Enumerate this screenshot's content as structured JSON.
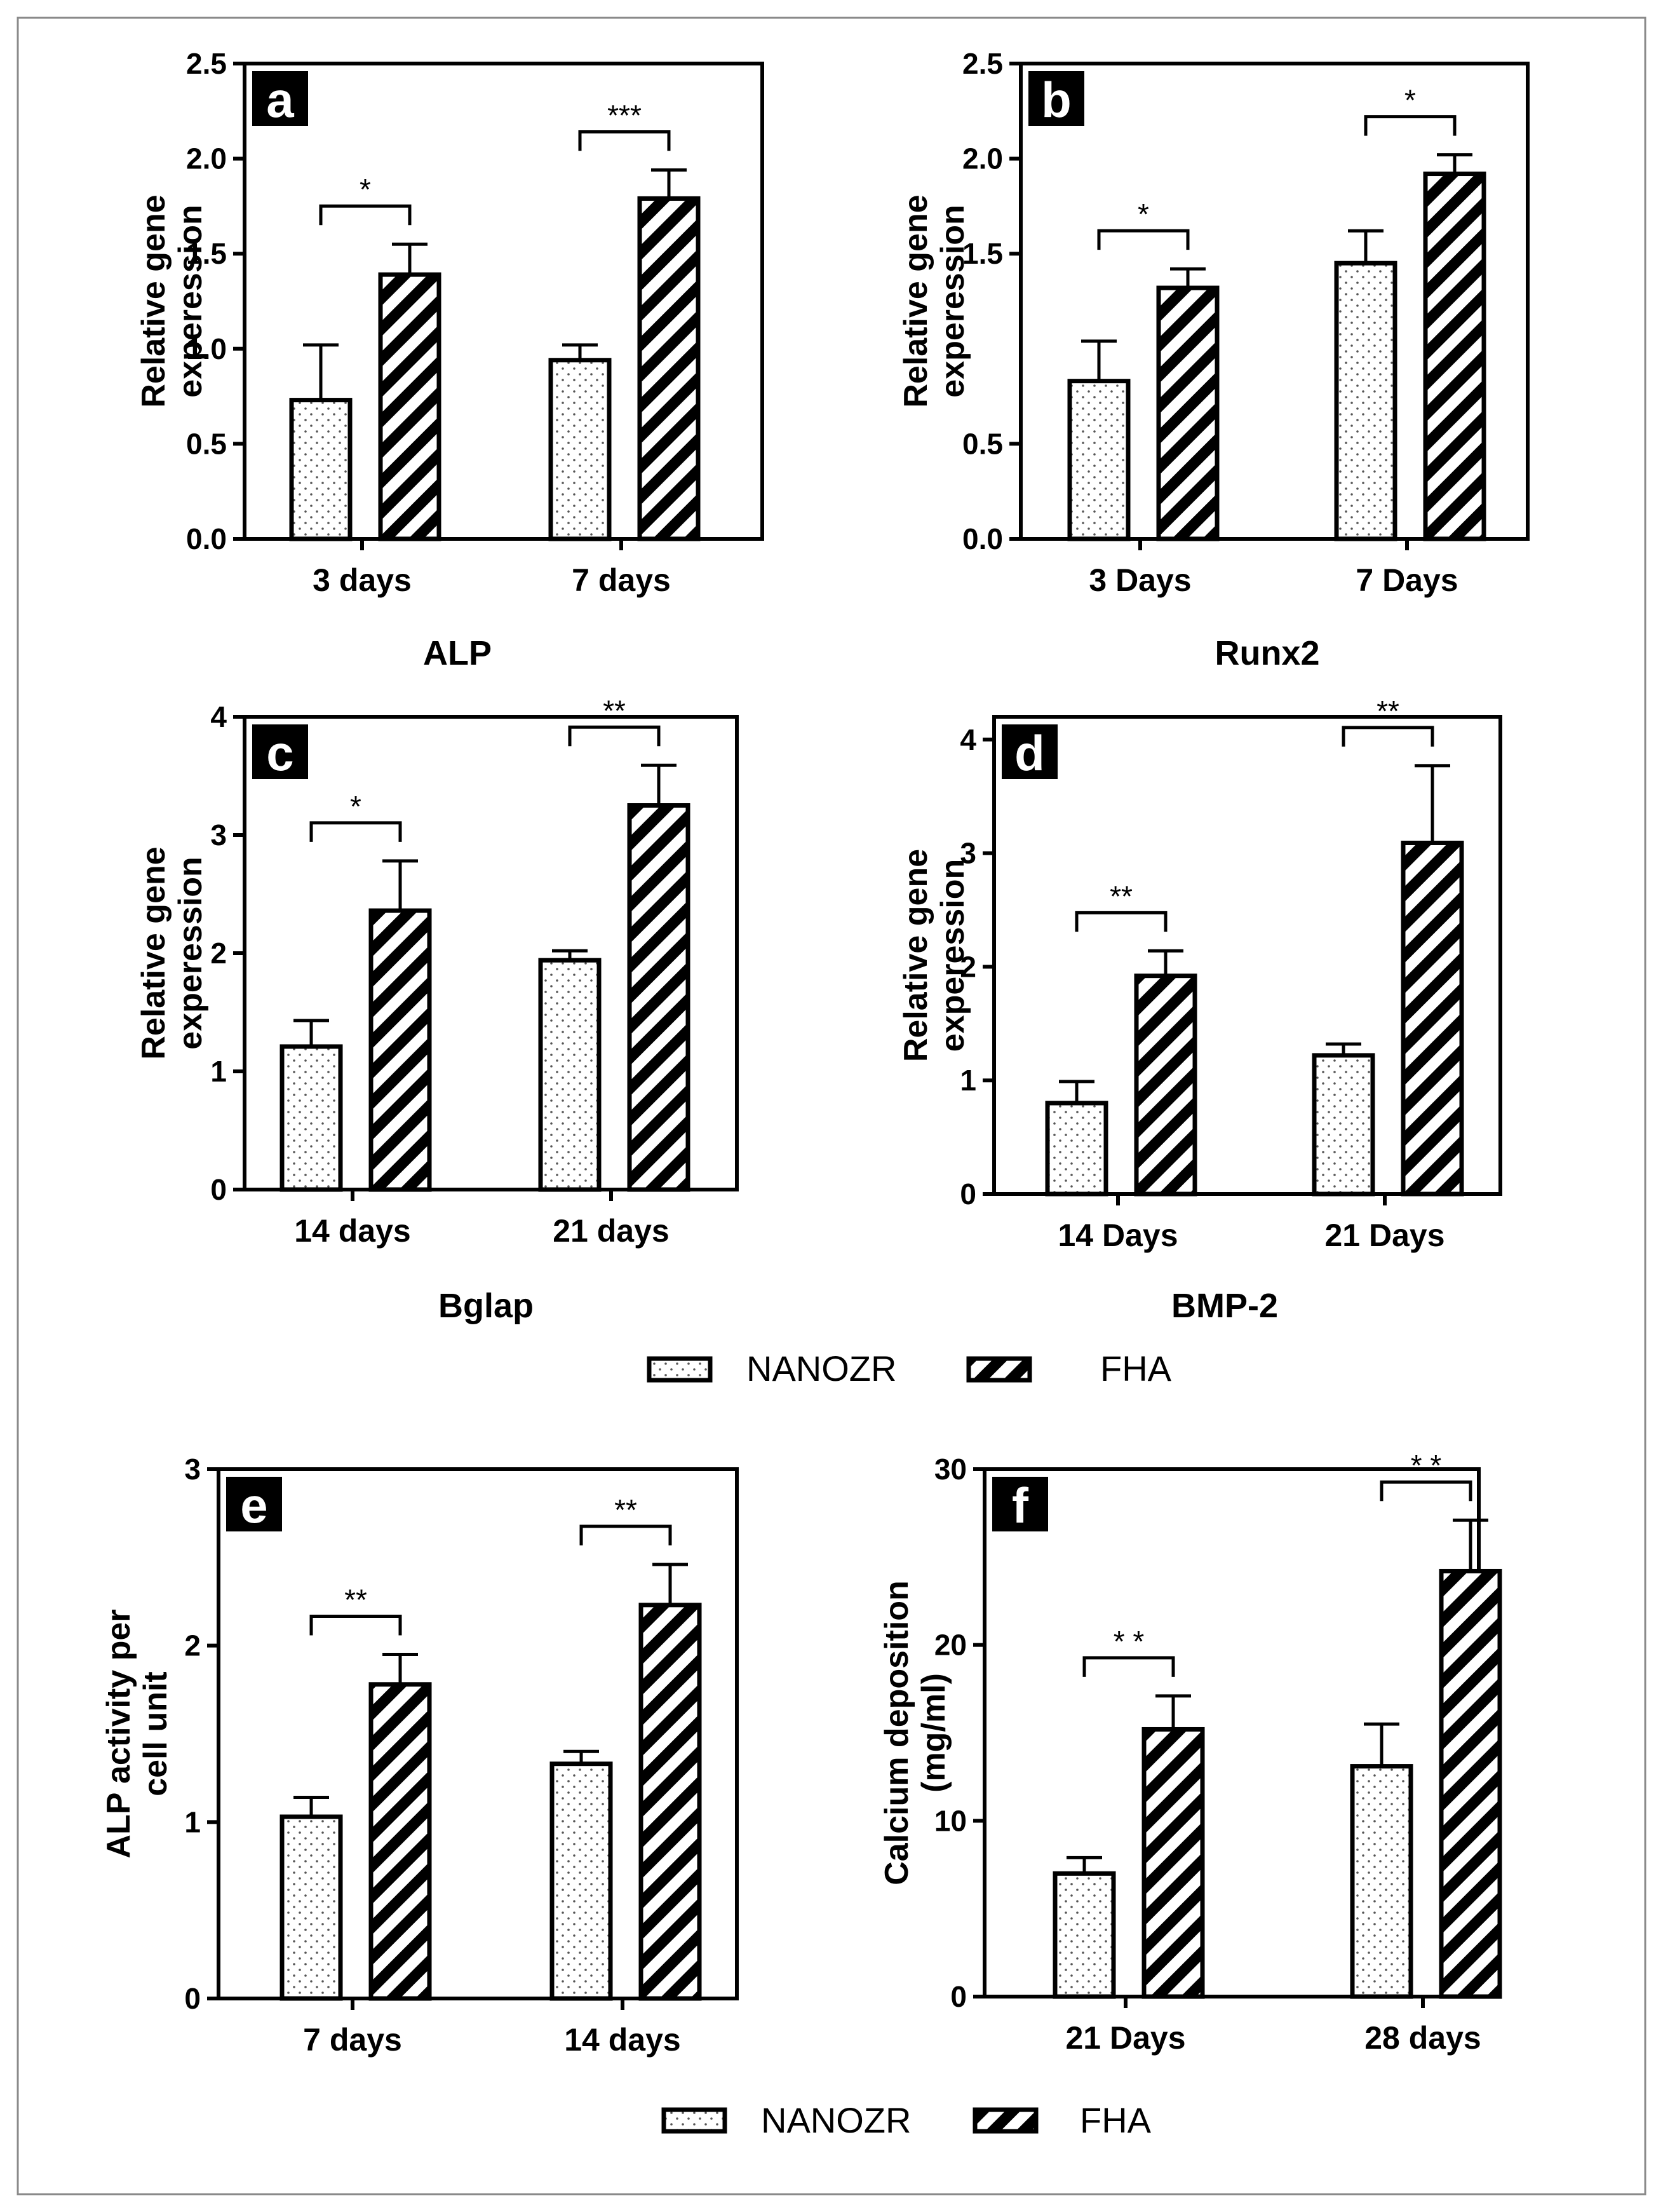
{
  "legend": {
    "series": [
      {
        "name": "NANOZR",
        "pattern": "dots"
      },
      {
        "name": "FHA",
        "pattern": "hatch"
      }
    ]
  },
  "chart_data": [
    {
      "panel": "a",
      "type": "bar",
      "gene": "ALP",
      "ylabel": [
        "Relative gene",
        "experession"
      ],
      "ylim": [
        0,
        2.5
      ],
      "yticks": [
        0,
        0.5,
        1.0,
        1.5,
        2.0,
        2.5
      ],
      "ytick_labels": [
        "0.0",
        "0.5",
        "1.0",
        "1.5",
        "2.0",
        "2.5"
      ],
      "categories": [
        "3 days",
        "7 days"
      ],
      "series": [
        {
          "name": "NANOZR",
          "values": [
            0.73,
            0.94
          ],
          "errors": [
            0.29,
            0.08
          ]
        },
        {
          "name": "FHA",
          "values": [
            1.39,
            1.79
          ],
          "errors": [
            0.16,
            0.15
          ]
        }
      ],
      "significance": [
        "*",
        "***"
      ]
    },
    {
      "panel": "b",
      "type": "bar",
      "gene": "Runx2",
      "ylabel": [
        "Relative gene",
        "experession"
      ],
      "ylim": [
        0,
        2.5
      ],
      "yticks": [
        0,
        0.5,
        1.5,
        2.0,
        2.5
      ],
      "ytick_labels": [
        "0.0",
        "0.5",
        "1.5",
        "2.0",
        "2.5"
      ],
      "categories": [
        "3 Days",
        "7 Days"
      ],
      "series": [
        {
          "name": "NANOZR",
          "values": [
            0.83,
            1.45
          ],
          "errors": [
            0.21,
            0.17
          ]
        },
        {
          "name": "FHA",
          "values": [
            1.32,
            1.92
          ],
          "errors": [
            0.1,
            0.1
          ]
        }
      ],
      "significance": [
        "*",
        "*"
      ]
    },
    {
      "panel": "c",
      "type": "bar",
      "gene": "Bglap",
      "ylabel": [
        "Relative gene",
        "experession"
      ],
      "ylim": [
        0,
        4
      ],
      "yticks": [
        0,
        1,
        2,
        3,
        4
      ],
      "ytick_labels": [
        "0",
        "1",
        "2",
        "3",
        "4"
      ],
      "categories": [
        "14 days",
        "21 days"
      ],
      "series": [
        {
          "name": "NANOZR",
          "values": [
            1.21,
            1.94
          ],
          "errors": [
            0.22,
            0.08
          ]
        },
        {
          "name": "FHA",
          "values": [
            2.36,
            3.25
          ],
          "errors": [
            0.42,
            0.34
          ]
        }
      ],
      "significance": [
        "*",
        "**"
      ]
    },
    {
      "panel": "d",
      "type": "bar",
      "gene": "BMP-2",
      "ylabel": [
        "Relative gene",
        "experession"
      ],
      "ylim": [
        0,
        4.2
      ],
      "yticks": [
        0,
        1,
        2,
        3,
        4
      ],
      "ytick_labels": [
        "0",
        "1",
        "2",
        "3",
        "4"
      ],
      "categories": [
        "14 Days",
        "21 Days"
      ],
      "series": [
        {
          "name": "NANOZR",
          "values": [
            0.8,
            1.22
          ],
          "errors": [
            0.19,
            0.1
          ]
        },
        {
          "name": "FHA",
          "values": [
            1.92,
            3.09
          ],
          "errors": [
            0.22,
            0.68
          ]
        }
      ],
      "significance": [
        "**",
        "**"
      ]
    },
    {
      "panel": "e",
      "type": "bar",
      "gene": "",
      "ylabel": [
        "ALP activity per",
        "cell unit"
      ],
      "ylim": [
        0,
        3
      ],
      "yticks": [
        0,
        1,
        2,
        3
      ],
      "ytick_labels": [
        "0",
        "1",
        "2",
        "3"
      ],
      "categories": [
        "7 days",
        "14 days"
      ],
      "series": [
        {
          "name": "NANOZR",
          "values": [
            1.03,
            1.33
          ],
          "errors": [
            0.11,
            0.07
          ]
        },
        {
          "name": "FHA",
          "values": [
            1.78,
            2.23
          ],
          "errors": [
            0.17,
            0.23
          ]
        }
      ],
      "significance": [
        "**",
        "**"
      ]
    },
    {
      "panel": "f",
      "type": "bar",
      "gene": "",
      "ylabel": [
        "Calcium deposition",
        "(mg/ml)"
      ],
      "ylim": [
        0,
        30
      ],
      "yticks": [
        0,
        10,
        20,
        30
      ],
      "ytick_labels": [
        "0",
        "10",
        "20",
        "30"
      ],
      "categories": [
        "21 Days",
        "28 days"
      ],
      "series": [
        {
          "name": "NANOZR",
          "values": [
            7.0,
            13.1
          ],
          "errors": [
            0.9,
            2.4
          ]
        },
        {
          "name": "FHA",
          "values": [
            15.2,
            24.2
          ],
          "errors": [
            1.9,
            2.9
          ]
        }
      ],
      "significance": [
        "* *",
        "* *"
      ]
    }
  ]
}
